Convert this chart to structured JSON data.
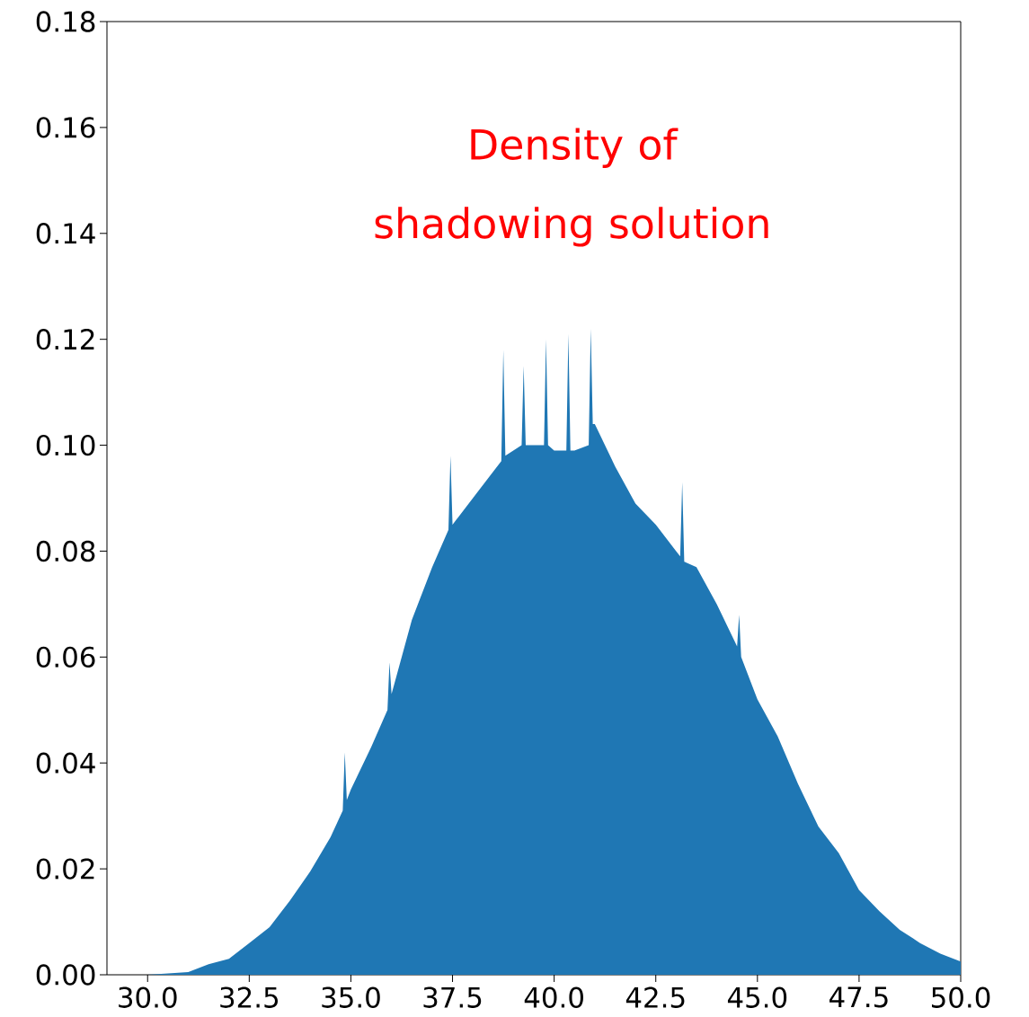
{
  "chart_data": {
    "type": "area",
    "annotations": [
      "Density of shadowing solution"
    ],
    "xlim": [
      29,
      50
    ],
    "ylim": [
      0,
      0.18
    ],
    "xticks": [
      {
        "value": 30,
        "label": "30.0"
      },
      {
        "value": 32.5,
        "label": "32.5"
      },
      {
        "value": 35,
        "label": "35.0"
      },
      {
        "value": 37.5,
        "label": "37.5"
      },
      {
        "value": 40,
        "label": "40.0"
      },
      {
        "value": 42.5,
        "label": "42.5"
      },
      {
        "value": 45,
        "label": "45.0"
      },
      {
        "value": 47.5,
        "label": "47.5"
      },
      {
        "value": 50,
        "label": "50.0"
      }
    ],
    "yticks": [
      {
        "value": 0,
        "label": "0.00"
      },
      {
        "value": 0.02,
        "label": "0.02"
      },
      {
        "value": 0.04,
        "label": "0.04"
      },
      {
        "value": 0.06,
        "label": "0.06"
      },
      {
        "value": 0.08,
        "label": "0.08"
      },
      {
        "value": 0.1,
        "label": "0.10"
      },
      {
        "value": 0.12,
        "label": "0.12"
      },
      {
        "value": 0.14,
        "label": "0.14"
      },
      {
        "value": 0.16,
        "label": "0.16"
      },
      {
        "value": 0.18,
        "label": "0.18"
      }
    ],
    "grid": false,
    "series": [
      {
        "color": "#1f77b4",
        "x": [
          30.0,
          31.0,
          31.5,
          32.0,
          32.5,
          33.0,
          33.5,
          34.0,
          34.5,
          34.8,
          34.85,
          34.9,
          35.0,
          35.5,
          35.9,
          35.95,
          36.0,
          36.5,
          37.0,
          37.4,
          37.45,
          37.5,
          38.0,
          38.5,
          38.7,
          38.75,
          38.8,
          39.0,
          39.2,
          39.25,
          39.3,
          39.5,
          39.75,
          39.8,
          39.85,
          40.0,
          40.3,
          40.35,
          40.4,
          40.5,
          40.85,
          40.9,
          40.95,
          41.0,
          41.5,
          42.0,
          42.5,
          43.0,
          43.1,
          43.15,
          43.2,
          43.5,
          44.0,
          44.5,
          44.55,
          44.6,
          45.0,
          45.5,
          46.0,
          46.5,
          47.0,
          47.5,
          48.0,
          48.5,
          49.0,
          49.5,
          50.0
        ],
        "values": [
          0,
          0.0005,
          0.002,
          0.003,
          0.006,
          0.009,
          0.014,
          0.0195,
          0.026,
          0.031,
          0.042,
          0.033,
          0.035,
          0.043,
          0.05,
          0.059,
          0.053,
          0.067,
          0.077,
          0.084,
          0.098,
          0.085,
          0.09,
          0.095,
          0.097,
          0.118,
          0.098,
          0.099,
          0.1,
          0.115,
          0.1,
          0.1,
          0.1,
          0.12,
          0.1,
          0.099,
          0.099,
          0.121,
          0.099,
          0.099,
          0.1,
          0.122,
          0.104,
          0.104,
          0.096,
          0.089,
          0.085,
          0.08,
          0.079,
          0.093,
          0.078,
          0.077,
          0.07,
          0.062,
          0.068,
          0.06,
          0.052,
          0.045,
          0.036,
          0.028,
          0.023,
          0.016,
          0.012,
          0.0085,
          0.006,
          0.004,
          0.0025
        ]
      }
    ]
  }
}
